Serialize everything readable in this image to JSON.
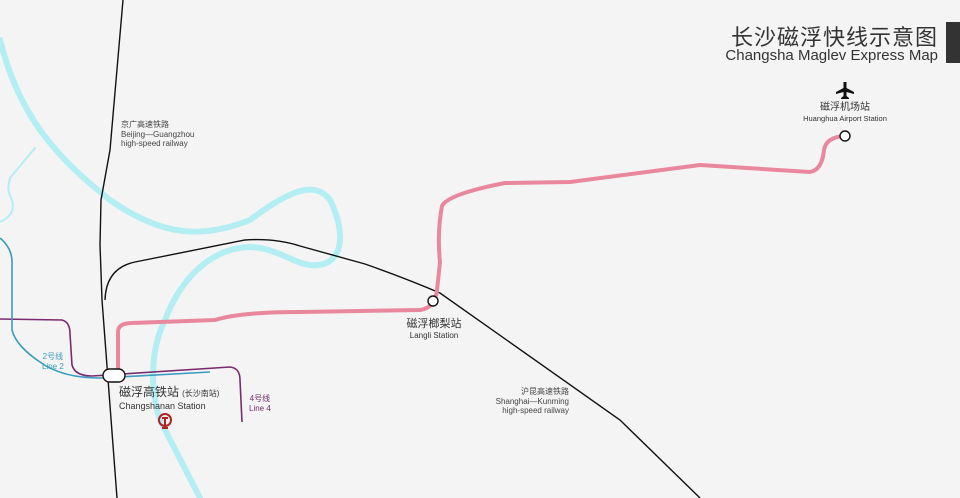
{
  "title": {
    "cn": "长沙磁浮快线示意图",
    "en": "Changsha Maglev Express Map"
  },
  "colors": {
    "maglev": "#e9879e",
    "river": "#b3eef3",
    "line2": "#3a9cbf",
    "line4": "#7a2a6e",
    "railway": "#111111",
    "rail_icon": "#b22222"
  },
  "stations": [
    {
      "cn": "磁浮高铁站",
      "cn_note": "(长沙南站)",
      "en": "Changshanan Station",
      "icon": "railway-station-icon"
    },
    {
      "cn": "磁浮榔梨站",
      "en": "Langli Station"
    },
    {
      "cn": "磁浮机场站",
      "en": "Huanghua Airport Station",
      "icon": "airplane-icon"
    }
  ],
  "railways": [
    {
      "cn": "京广高速铁路",
      "en1": "Beijing—Guangzhou",
      "en2": "high-speed railway"
    },
    {
      "cn": "沪昆高速铁路",
      "en1": "Shanghai—Kunming",
      "en2": "high-speed railway"
    }
  ],
  "metro": [
    {
      "cn": "2号线",
      "en": "Line 2"
    },
    {
      "cn": "4号线",
      "en": "Line 4"
    }
  ]
}
